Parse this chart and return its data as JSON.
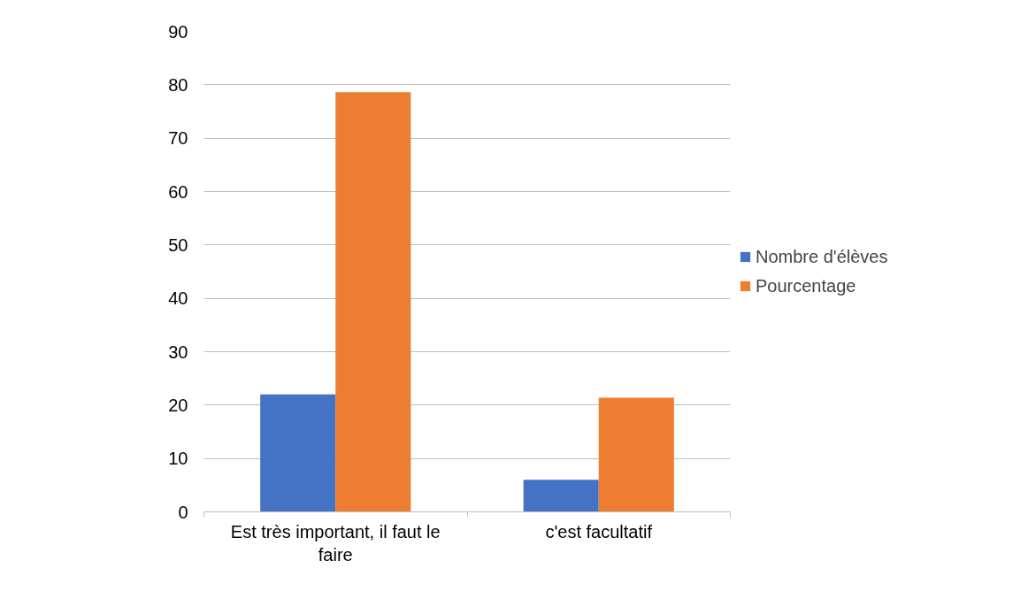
{
  "chart_data": {
    "type": "bar",
    "categories": [
      "Est très important, il faut le faire",
      "c'est facultatif"
    ],
    "series": [
      {
        "name": "Nombre d'élèves",
        "color": "#4472c4",
        "values": [
          22,
          6
        ]
      },
      {
        "name": "Pourcentage",
        "color": "#ed7d31",
        "values": [
          78.6,
          21.4
        ]
      }
    ],
    "ylim": [
      0,
      90
    ],
    "yticks": [
      0,
      10,
      20,
      30,
      40,
      50,
      60,
      70,
      80,
      90
    ],
    "grid": "y",
    "legend": "right"
  }
}
